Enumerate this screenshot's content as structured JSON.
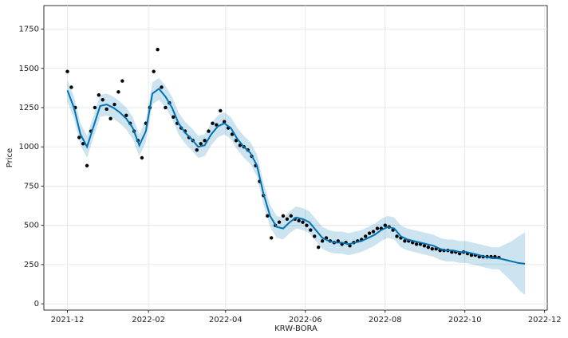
{
  "chart_data": {
    "type": "line",
    "xlabel": "KRW-BORA",
    "ylabel": "Price",
    "xlim": [
      -18,
      367
    ],
    "ylim": [
      -40,
      1900
    ],
    "xticks": [
      {
        "value": 0,
        "label": "2021-12"
      },
      {
        "value": 62,
        "label": "2022-02"
      },
      {
        "value": 121,
        "label": "2022-04"
      },
      {
        "value": 182,
        "label": "2022-06"
      },
      {
        "value": 243,
        "label": "2022-08"
      },
      {
        "value": 304,
        "label": "2022-10"
      },
      {
        "value": 365,
        "label": "2022-12"
      }
    ],
    "yticks": [
      0,
      250,
      500,
      750,
      1000,
      1250,
      1500,
      1750
    ],
    "grid": true,
    "series": [
      {
        "mode": "markers",
        "color": "#000000",
        "x": [
          0,
          3,
          6,
          9,
          12,
          15,
          18,
          21,
          24,
          27,
          30,
          33,
          36,
          39,
          42,
          45,
          48,
          51,
          54,
          57,
          60,
          63,
          66,
          69,
          72,
          75,
          78,
          81,
          84,
          87,
          90,
          93,
          96,
          99,
          102,
          105,
          108,
          111,
          114,
          117,
          120,
          123,
          126,
          129,
          132,
          135,
          138,
          141,
          144,
          147,
          150,
          153,
          156,
          159,
          162,
          165,
          168,
          171,
          174,
          177,
          180,
          183,
          186,
          189,
          192,
          195,
          198,
          201,
          204,
          207,
          210,
          213,
          216,
          219,
          222,
          225,
          228,
          231,
          234,
          237,
          240,
          243,
          246,
          249,
          252,
          255,
          258,
          261,
          264,
          267,
          270,
          273,
          276,
          279,
          282,
          285,
          288,
          291,
          294,
          297,
          300,
          303,
          306,
          309,
          312,
          315,
          318,
          321,
          324,
          327,
          330
        ],
        "values": [
          1480,
          1380,
          1250,
          1060,
          1020,
          880,
          1100,
          1250,
          1330,
          1300,
          1240,
          1180,
          1270,
          1350,
          1420,
          1200,
          1150,
          1100,
          1040,
          930,
          1150,
          1250,
          1480,
          1620,
          1380,
          1250,
          1280,
          1190,
          1150,
          1120,
          1100,
          1060,
          1040,
          980,
          1020,
          1040,
          1100,
          1150,
          1140,
          1230,
          1160,
          1120,
          1080,
          1040,
          1010,
          1000,
          980,
          940,
          880,
          780,
          690,
          560,
          420,
          500,
          520,
          560,
          540,
          560,
          540,
          530,
          520,
          500,
          470,
          430,
          360,
          400,
          420,
          400,
          390,
          400,
          380,
          390,
          370,
          390,
          400,
          410,
          430,
          450,
          460,
          480,
          480,
          500,
          490,
          470,
          430,
          420,
          400,
          400,
          390,
          380,
          380,
          370,
          360,
          350,
          350,
          340,
          340,
          340,
          330,
          330,
          320,
          330,
          320,
          310,
          310,
          300,
          300,
          300,
          300,
          300,
          295
        ]
      },
      {
        "mode": "line",
        "color": "#0072B2",
        "x": [
          0,
          5,
          10,
          15,
          20,
          25,
          30,
          35,
          40,
          45,
          50,
          55,
          60,
          65,
          70,
          75,
          80,
          85,
          90,
          95,
          100,
          105,
          110,
          115,
          120,
          125,
          130,
          135,
          140,
          145,
          150,
          155,
          160,
          165,
          170,
          175,
          180,
          185,
          190,
          195,
          200,
          205,
          210,
          215,
          220,
          225,
          230,
          235,
          240,
          245,
          250,
          255,
          260,
          265,
          270,
          275,
          280,
          285,
          290,
          295,
          300,
          305,
          310,
          315,
          320,
          325,
          330,
          335,
          340,
          345,
          350
        ],
        "values": [
          1360,
          1250,
          1080,
          1000,
          1130,
          1260,
          1270,
          1250,
          1220,
          1180,
          1120,
          1010,
          1100,
          1340,
          1370,
          1320,
          1250,
          1150,
          1090,
          1050,
          1000,
          1010,
          1080,
          1130,
          1150,
          1120,
          1050,
          1000,
          960,
          880,
          700,
          560,
          490,
          480,
          520,
          550,
          540,
          520,
          470,
          420,
          400,
          390,
          390,
          380,
          390,
          400,
          420,
          440,
          470,
          490,
          480,
          430,
          410,
          400,
          390,
          380,
          370,
          350,
          340,
          340,
          330,
          330,
          320,
          310,
          300,
          290,
          290,
          280,
          270,
          260,
          255
        ],
        "upper": [
          1430,
          1320,
          1150,
          1070,
          1200,
          1330,
          1340,
          1320,
          1290,
          1250,
          1190,
          1080,
          1170,
          1410,
          1440,
          1390,
          1320,
          1220,
          1160,
          1120,
          1070,
          1080,
          1150,
          1200,
          1220,
          1190,
          1120,
          1070,
          1030,
          950,
          770,
          630,
          560,
          550,
          590,
          620,
          610,
          590,
          540,
          490,
          470,
          460,
          460,
          450,
          460,
          470,
          490,
          510,
          540,
          560,
          550,
          500,
          480,
          470,
          460,
          450,
          440,
          420,
          410,
          410,
          400,
          400,
          390,
          380,
          370,
          360,
          360,
          380,
          400,
          430,
          455
        ],
        "lower": [
          1290,
          1180,
          1010,
          930,
          1060,
          1190,
          1200,
          1180,
          1150,
          1110,
          1050,
          940,
          1030,
          1270,
          1300,
          1250,
          1180,
          1080,
          1020,
          980,
          930,
          940,
          1010,
          1060,
          1080,
          1050,
          980,
          930,
          890,
          810,
          630,
          490,
          420,
          410,
          450,
          480,
          470,
          450,
          400,
          350,
          330,
          320,
          320,
          310,
          320,
          330,
          350,
          370,
          400,
          420,
          410,
          360,
          340,
          330,
          320,
          310,
          300,
          280,
          270,
          270,
          260,
          260,
          250,
          240,
          230,
          220,
          220,
          180,
          140,
          90,
          55
        ]
      }
    ]
  }
}
